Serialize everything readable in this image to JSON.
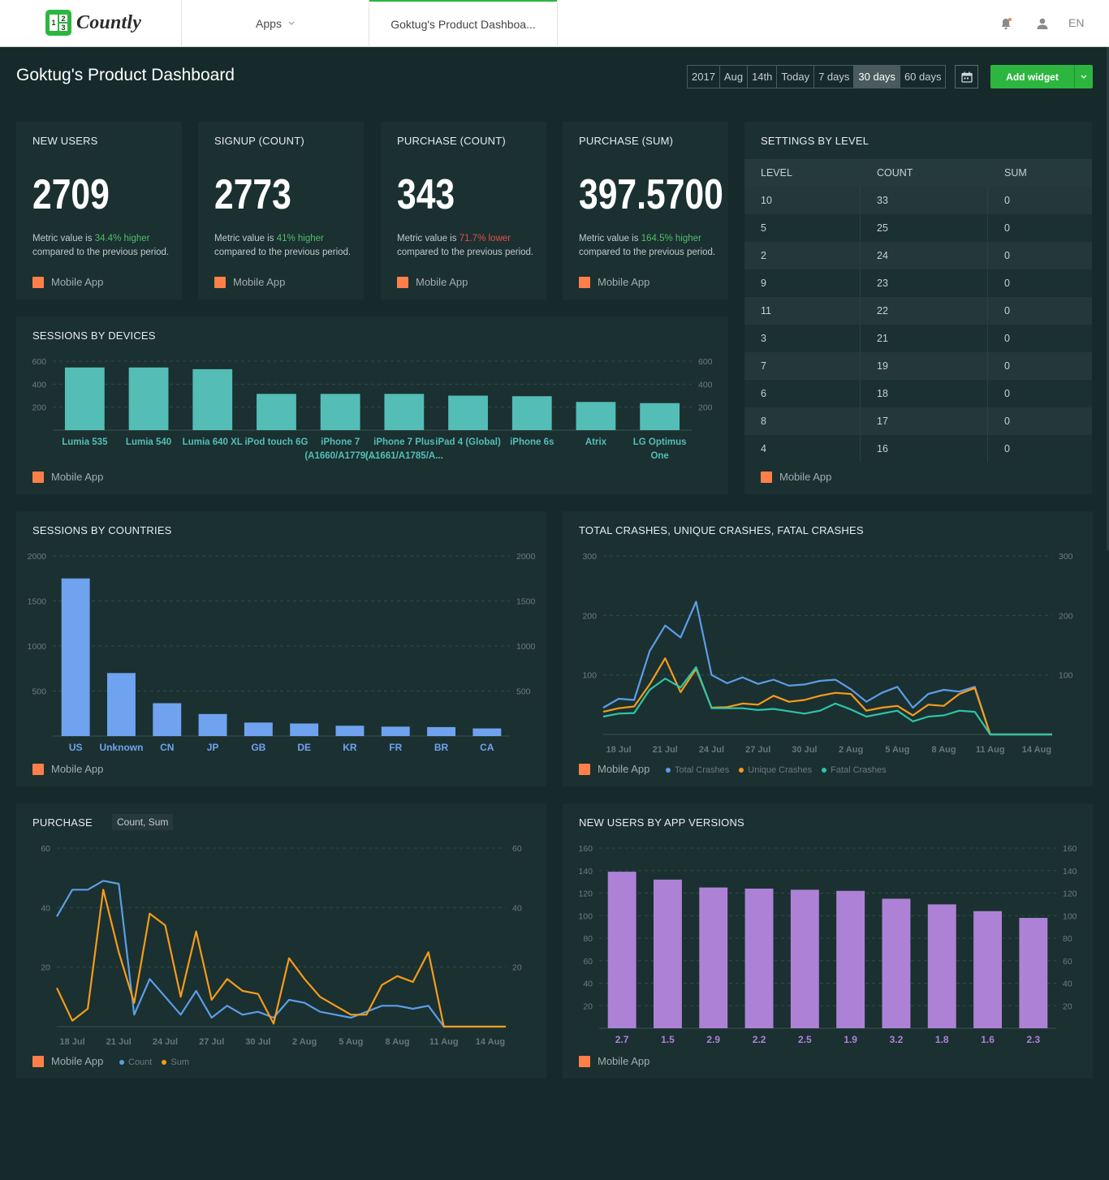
{
  "brand": {
    "name": "Countly",
    "logo_digits": [
      "1",
      "2",
      "3"
    ]
  },
  "nav": {
    "apps_label": "Apps",
    "active_tab": "Goktug's Product Dashboa...",
    "language": "EN"
  },
  "page": {
    "title": "Goktug's Product Dashboard"
  },
  "periods": [
    "2017",
    "Aug",
    "14th",
    "Today",
    "7 days",
    "30 days",
    "60 days"
  ],
  "active_period": "30 days",
  "add_widget_label": "Add widget",
  "app_label": "Mobile App",
  "colors": {
    "accent": "#2db63f",
    "app_legend": "#ff7f4a",
    "teal": "#54bdb6",
    "blue": "#6fa3ef",
    "purple": "#ad82d6"
  },
  "metrics": [
    {
      "title": "NEW USERS",
      "value": "2709",
      "desc_pre": "Metric value is ",
      "change": "34.4% higher",
      "trend": "up",
      "desc_post": " compared to the previous period."
    },
    {
      "title": "SIGNUP (COUNT)",
      "value": "2773",
      "desc_pre": "Metric value is ",
      "change": "41% higher",
      "trend": "up",
      "desc_post": " compared to the previous period."
    },
    {
      "title": "PURCHASE (COUNT)",
      "value": "343",
      "desc_pre": "Metric value is ",
      "change": "71.7% lower",
      "trend": "down",
      "desc_post": " compared to the previous period."
    },
    {
      "title": "PURCHASE (SUM)",
      "value": "397.5700",
      "desc_pre": "Metric value is ",
      "change": "164.5% higher",
      "trend": "up",
      "desc_post": " compared to the previous period."
    }
  ],
  "settings_table": {
    "title": "SETTINGS BY LEVEL",
    "headers": [
      "LEVEL",
      "COUNT",
      "SUM"
    ],
    "rows": [
      [
        "10",
        "33",
        "0"
      ],
      [
        "5",
        "25",
        "0"
      ],
      [
        "2",
        "24",
        "0"
      ],
      [
        "9",
        "23",
        "0"
      ],
      [
        "11",
        "22",
        "0"
      ],
      [
        "3",
        "21",
        "0"
      ],
      [
        "7",
        "19",
        "0"
      ],
      [
        "6",
        "18",
        "0"
      ],
      [
        "8",
        "17",
        "0"
      ],
      [
        "4",
        "16",
        "0"
      ]
    ]
  },
  "widgets": {
    "devices": {
      "title": "SESSIONS BY DEVICES"
    },
    "countries": {
      "title": "SESSIONS BY COUNTRIES"
    },
    "crashes": {
      "title": "TOTAL CRASHES, UNIQUE CRASHES, FATAL CRASHES"
    },
    "purchase": {
      "title": "PURCHASE",
      "badge": "Count, Sum"
    },
    "versions": {
      "title": "NEW USERS BY APP VERSIONS"
    }
  },
  "chart_data": [
    {
      "id": "devices",
      "type": "bar",
      "title": "SESSIONS BY DEVICES",
      "categories": [
        [
          "Lumia 535"
        ],
        [
          "Lumia 540"
        ],
        [
          "Lumia 640 XL"
        ],
        [
          "iPod touch 6G"
        ],
        [
          "iPhone 7",
          "(A1660/A1779/..."
        ],
        [
          "iPhone 7 Plus",
          "(A1661/A1785/A..."
        ],
        [
          "iPad 4 (Global)"
        ],
        [
          "iPhone 6s"
        ],
        [
          "Atrix"
        ],
        [
          "LG Optimus",
          "One"
        ]
      ],
      "values": [
        545,
        545,
        530,
        315,
        315,
        315,
        300,
        295,
        245,
        235
      ],
      "ylim": [
        0,
        600
      ],
      "yticks": [
        200,
        400,
        600
      ],
      "color": "#54bdb6"
    },
    {
      "id": "countries",
      "type": "bar",
      "title": "SESSIONS BY COUNTRIES",
      "categories": [
        [
          "US"
        ],
        [
          "Unknown"
        ],
        [
          "CN"
        ],
        [
          "JP"
        ],
        [
          "GB"
        ],
        [
          "DE"
        ],
        [
          "KR"
        ],
        [
          "FR"
        ],
        [
          "BR"
        ],
        [
          "CA"
        ]
      ],
      "values": [
        1750,
        700,
        365,
        245,
        150,
        140,
        115,
        105,
        100,
        85
      ],
      "ylim": [
        0,
        2000
      ],
      "yticks": [
        500,
        1000,
        1500,
        2000
      ],
      "color": "#6fa3ef"
    },
    {
      "id": "crashes",
      "type": "line",
      "title": "TOTAL CRASHES, UNIQUE CRASHES, FATAL CRASHES",
      "x": [
        "17 Jul",
        "18 Jul",
        "19 Jul",
        "20 Jul",
        "21 Jul",
        "22 Jul",
        "23 Jul",
        "24 Jul",
        "25 Jul",
        "26 Jul",
        "27 Jul",
        "28 Jul",
        "29 Jul",
        "30 Jul",
        "31 Jul",
        "1 Aug",
        "2 Aug",
        "3 Aug",
        "4 Aug",
        "5 Aug",
        "6 Aug",
        "7 Aug",
        "8 Aug",
        "9 Aug",
        "10 Aug",
        "11 Aug",
        "12 Aug",
        "13 Aug",
        "14 Aug",
        "15 Aug"
      ],
      "xticks": [
        "18 Jul",
        "21 Jul",
        "24 Jul",
        "27 Jul",
        "30 Jul",
        "2 Aug",
        "5 Aug",
        "8 Aug",
        "11 Aug",
        "14 Aug"
      ],
      "series": [
        {
          "name": "Total Crashes",
          "color": "#5b9ee6",
          "values": [
            45,
            60,
            58,
            140,
            183,
            163,
            223,
            100,
            86,
            96,
            85,
            92,
            82,
            84,
            90,
            92,
            76,
            55,
            70,
            80,
            45,
            68,
            75,
            72,
            80,
            0,
            0,
            0,
            0,
            0
          ]
        },
        {
          "name": "Unique Crashes",
          "color": "#f59c1a",
          "values": [
            38,
            44,
            47,
            84,
            128,
            71,
            110,
            45,
            46,
            52,
            50,
            65,
            55,
            58,
            65,
            70,
            68,
            40,
            45,
            48,
            32,
            50,
            48,
            68,
            78,
            0,
            0,
            0,
            0,
            0
          ]
        },
        {
          "name": "Fatal Crashes",
          "color": "#2ec4a7",
          "values": [
            30,
            35,
            36,
            75,
            94,
            79,
            113,
            44,
            44,
            44,
            41,
            43,
            39,
            35,
            40,
            52,
            42,
            30,
            35,
            40,
            22,
            30,
            32,
            40,
            38,
            0,
            0,
            0,
            0,
            0
          ]
        }
      ],
      "ylim": [
        0,
        300
      ],
      "yticks": [
        100,
        200,
        300
      ]
    },
    {
      "id": "purchase",
      "type": "line",
      "title": "PURCHASE",
      "x": [
        "17 Jul",
        "18 Jul",
        "19 Jul",
        "20 Jul",
        "21 Jul",
        "22 Jul",
        "23 Jul",
        "24 Jul",
        "25 Jul",
        "26 Jul",
        "27 Jul",
        "28 Jul",
        "29 Jul",
        "30 Jul",
        "31 Jul",
        "1 Aug",
        "2 Aug",
        "3 Aug",
        "4 Aug",
        "5 Aug",
        "6 Aug",
        "7 Aug",
        "8 Aug",
        "9 Aug",
        "10 Aug",
        "11 Aug",
        "12 Aug",
        "13 Aug",
        "14 Aug",
        "15 Aug"
      ],
      "xticks": [
        "18 Jul",
        "21 Jul",
        "24 Jul",
        "27 Jul",
        "30 Jul",
        "2 Aug",
        "5 Aug",
        "8 Aug",
        "11 Aug",
        "14 Aug"
      ],
      "series": [
        {
          "name": "Count",
          "color": "#5b9ee6",
          "values": [
            37,
            46,
            46,
            49,
            48,
            4,
            16,
            10,
            4,
            12,
            3,
            7,
            4,
            5,
            3,
            9,
            8,
            5,
            4,
            3,
            5,
            7,
            7,
            6,
            7,
            0,
            0,
            0,
            0,
            0
          ]
        },
        {
          "name": "Sum",
          "color": "#f59c1a",
          "values": [
            13,
            2,
            6,
            46,
            25,
            8,
            38,
            34,
            10,
            32,
            9,
            16,
            12,
            11,
            1,
            23,
            16,
            10,
            7,
            4,
            4,
            14,
            17,
            15,
            25,
            0,
            0,
            0,
            0,
            0
          ]
        }
      ],
      "ylim": [
        0,
        60
      ],
      "yticks": [
        20,
        40,
        60
      ]
    },
    {
      "id": "versions",
      "type": "bar",
      "title": "NEW USERS BY APP VERSIONS",
      "categories": [
        [
          "2.7"
        ],
        [
          "1.5"
        ],
        [
          "2.9"
        ],
        [
          "2.2"
        ],
        [
          "2.5"
        ],
        [
          "1.9"
        ],
        [
          "3.2"
        ],
        [
          "1.8"
        ],
        [
          "1.6"
        ],
        [
          "2.3"
        ]
      ],
      "values": [
        139,
        132,
        125,
        124,
        123,
        122,
        115,
        110,
        104,
        98
      ],
      "ylim": [
        0,
        160
      ],
      "yticks": [
        20,
        40,
        60,
        80,
        100,
        120,
        140,
        160
      ],
      "color": "#ad82d6"
    }
  ]
}
